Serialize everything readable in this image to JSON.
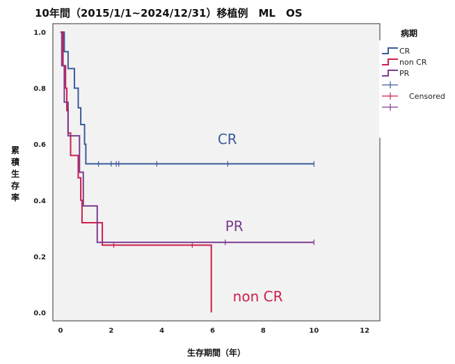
{
  "chart_data": {
    "type": "line",
    "title": "10年間（2015/1/1~2024/12/31）移植例　ML　OS",
    "xlabel": "生存期間（年）",
    "ylabel": "累積生存率",
    "xlim": [
      -0.3,
      12.6
    ],
    "ylim": [
      -0.03,
      1.03
    ],
    "xticks": [
      0,
      2,
      4,
      6,
      8,
      10,
      12
    ],
    "yticks": [
      0.0,
      0.2,
      0.4,
      0.6,
      0.8,
      1.0
    ],
    "ytick_labels": [
      "0.0",
      "0.2",
      "0.4",
      "0.6",
      "0.8",
      "1.0"
    ],
    "grid": false,
    "legend_position": "right",
    "legend": {
      "title": "病期",
      "entries": [
        "CR",
        "non CR",
        "PR"
      ],
      "censored_label": "Censored"
    },
    "series": [
      {
        "name": "CR",
        "color": "#3b5b9a",
        "steps": [
          [
            0,
            1.0
          ],
          [
            0.15,
            0.93
          ],
          [
            0.3,
            0.87
          ],
          [
            0.55,
            0.8
          ],
          [
            0.7,
            0.73
          ],
          [
            0.8,
            0.67
          ],
          [
            0.95,
            0.6
          ],
          [
            1.0,
            0.53
          ],
          [
            10.0,
            0.53
          ]
        ],
        "censored": [
          1.5,
          2.0,
          2.2,
          2.3,
          3.8,
          6.6,
          10.0
        ],
        "annotation": {
          "text": "CR",
          "x": 6.2,
          "y": 0.6
        }
      },
      {
        "name": "non CR",
        "color": "#cc1f4a",
        "steps": [
          [
            0,
            1.0
          ],
          [
            0.1,
            0.88
          ],
          [
            0.2,
            0.8
          ],
          [
            0.25,
            0.72
          ],
          [
            0.3,
            0.64
          ],
          [
            0.4,
            0.56
          ],
          [
            0.7,
            0.48
          ],
          [
            0.8,
            0.4
          ],
          [
            0.85,
            0.32
          ],
          [
            1.65,
            0.24
          ],
          [
            5.95,
            0.24
          ],
          [
            5.95,
            0.0
          ]
        ],
        "censored": [
          2.1,
          5.2
        ],
        "annotation": {
          "text": "non CR",
          "x": 6.8,
          "y": 0.04
        }
      },
      {
        "name": "PR",
        "color": "#7a3b8f",
        "steps": [
          [
            0,
            1.0
          ],
          [
            0.05,
            0.88
          ],
          [
            0.15,
            0.75
          ],
          [
            0.3,
            0.63
          ],
          [
            0.75,
            0.5
          ],
          [
            0.9,
            0.38
          ],
          [
            1.45,
            0.25
          ],
          [
            10.0,
            0.25
          ]
        ],
        "censored": [
          6.5,
          10.0
        ],
        "annotation": {
          "text": "PR",
          "x": 6.5,
          "y": 0.29
        }
      }
    ]
  }
}
